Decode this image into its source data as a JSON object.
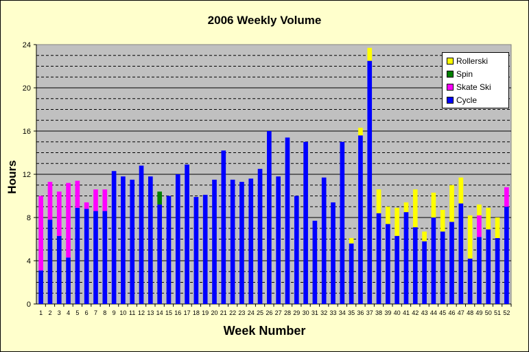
{
  "chart_data": {
    "type": "bar",
    "stacked": true,
    "title": "2006 Weekly Volume",
    "xlabel": "Week Number",
    "ylabel": "Hours",
    "ylim": [
      0,
      24
    ],
    "yticks": [
      0,
      4,
      8,
      12,
      16,
      20,
      24
    ],
    "grid": "horizontal dashed minor every 1 hour, solid major every 4 hours",
    "legend_position": "top-right",
    "background_color": "#ffffcc",
    "plot_background_color": "#c0c0c0",
    "categories": [
      "1",
      "2",
      "3",
      "4",
      "5",
      "6",
      "7",
      "8",
      "9",
      "10",
      "11",
      "12",
      "13",
      "14",
      "15",
      "16",
      "17",
      "18",
      "19",
      "20",
      "21",
      "22",
      "23",
      "24",
      "25",
      "26",
      "27",
      "28",
      "29",
      "30",
      "31",
      "32",
      "33",
      "34",
      "35",
      "36",
      "37",
      "38",
      "39",
      "40",
      "41",
      "42",
      "43",
      "44",
      "45",
      "46",
      "47",
      "48",
      "49",
      "50",
      "51",
      "52"
    ],
    "series": [
      {
        "name": "Cycle",
        "color": "#0000ff",
        "values": [
          3.1,
          7.8,
          6.3,
          4.3,
          8.9,
          8.8,
          8.6,
          8.6,
          12.3,
          11.8,
          11.5,
          12.8,
          11.8,
          9.2,
          10.0,
          12.0,
          12.9,
          9.9,
          10.1,
          11.5,
          14.2,
          11.5,
          11.3,
          11.6,
          12.5,
          16.0,
          11.8,
          15.4,
          10.0,
          15.0,
          7.7,
          11.7,
          9.4,
          15.0,
          5.6,
          15.6,
          22.5,
          8.4,
          7.4,
          6.3,
          8.5,
          7.1,
          5.8,
          8.0,
          6.7,
          7.6,
          9.3,
          4.2,
          6.2,
          6.9,
          6.1,
          9.0
        ]
      },
      {
        "name": "Skate Ski",
        "color": "#ff00ff",
        "values": [
          6.9,
          3.5,
          4.1,
          6.9,
          2.5,
          0.6,
          2.0,
          2.0,
          0,
          0,
          0,
          0,
          0,
          0,
          0,
          0,
          0,
          0,
          0,
          0,
          0,
          0,
          0,
          0,
          0,
          0,
          0,
          0,
          0,
          0,
          0,
          0,
          0,
          0,
          0,
          0,
          0,
          0,
          0,
          0,
          0,
          0,
          0,
          0,
          0,
          0,
          0,
          0,
          2.0,
          0,
          0,
          1.8
        ]
      },
      {
        "name": "Spin",
        "color": "#008000",
        "values": [
          0,
          0,
          0,
          0,
          0,
          0,
          0,
          0,
          0,
          0,
          0,
          0,
          0,
          1.2,
          0,
          0,
          0,
          0,
          0,
          0,
          0,
          0,
          0,
          0,
          0,
          0,
          0,
          0,
          0,
          0,
          0,
          0,
          0,
          0,
          0,
          0,
          0,
          0,
          0,
          0,
          0,
          0,
          0,
          0,
          0,
          0,
          0,
          0,
          0,
          0,
          0,
          0
        ]
      },
      {
        "name": "Rollerski",
        "color": "#ffff00",
        "values": [
          0,
          0,
          0,
          0,
          0,
          0,
          0,
          0,
          0,
          0,
          0,
          0,
          0,
          0,
          0,
          0,
          0,
          0,
          0,
          0,
          0,
          0,
          0,
          0,
          0,
          0,
          0,
          0,
          0,
          0,
          0,
          0,
          0,
          0,
          0.5,
          0.7,
          1.2,
          2.2,
          1.6,
          2.6,
          0.9,
          3.5,
          0.9,
          2.3,
          2.0,
          3.4,
          2.4,
          4.0,
          1.0,
          2.0,
          1.9,
          0
        ]
      }
    ]
  }
}
